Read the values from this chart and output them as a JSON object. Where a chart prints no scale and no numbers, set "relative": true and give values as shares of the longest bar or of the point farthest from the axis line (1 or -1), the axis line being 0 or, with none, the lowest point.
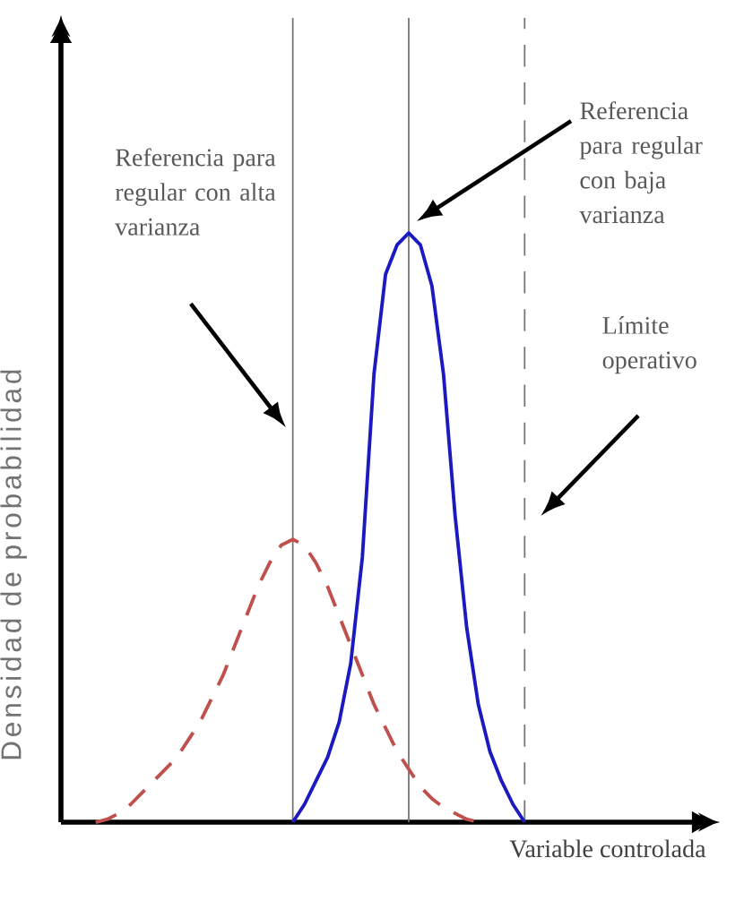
{
  "chart_data": {
    "type": "line",
    "relative": true,
    "xlabel": "Variable controlada",
    "ylabel": "Densidad de probabilidad",
    "categories": [
      null,
      null,
      null,
      null,
      null,
      null,
      null,
      null,
      null,
      null,
      null,
      null,
      null,
      null,
      null,
      null,
      null,
      null,
      null,
      null,
      null,
      null,
      null,
      null,
      null,
      null,
      null,
      null,
      null,
      null,
      null,
      null,
      null,
      null,
      null,
      null,
      null,
      null,
      null,
      null,
      null,
      null,
      null,
      null,
      null,
      null,
      null,
      null,
      null,
      null,
      null,
      null,
      null,
      null,
      null,
      null,
      null
    ],
    "series": [
      {
        "color": "#c0504d",
        "line_style": "dashed",
        "values": [
          null,
          null,
          null,
          0,
          0.005,
          0.015,
          0.03,
          0.05,
          0.07,
          0.09,
          0.11,
          0.14,
          0.17,
          0.21,
          0.25,
          0.3,
          0.35,
          0.4,
          0.44,
          0.47,
          0.48,
          0.47,
          0.44,
          0.4,
          0.35,
          0.3,
          0.25,
          0.2,
          0.16,
          0.12,
          0.09,
          0.06,
          0.04,
          0.025,
          0.015,
          0.005,
          0,
          null,
          null,
          null,
          null,
          null,
          null,
          null,
          null,
          null,
          null,
          null,
          null,
          null,
          null,
          null,
          null,
          null,
          null,
          null,
          null
        ]
      },
      {
        "color": "#1a1ac0",
        "line_style": "solid",
        "values": [
          null,
          null,
          null,
          null,
          null,
          null,
          null,
          null,
          null,
          null,
          null,
          null,
          null,
          null,
          null,
          null,
          null,
          null,
          null,
          null,
          0,
          0.03,
          0.07,
          0.11,
          0.17,
          0.27,
          0.45,
          0.76,
          0.93,
          0.98,
          1,
          0.98,
          0.91,
          0.76,
          0.52,
          0.33,
          0.2,
          0.12,
          0.07,
          0.03,
          0,
          null,
          null,
          null,
          null,
          null,
          null,
          null,
          null,
          null,
          null,
          null,
          null,
          null,
          null,
          null,
          null
        ]
      }
    ],
    "annotations": [
      "Referencia para regular con alta varianza",
      "Referencia para regular con baja varianza",
      "Límite operativo"
    ]
  }
}
